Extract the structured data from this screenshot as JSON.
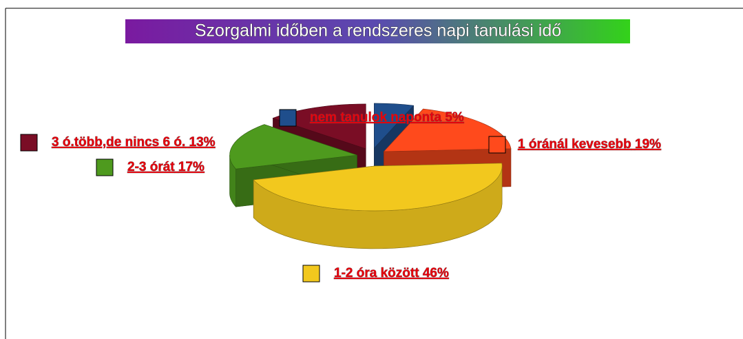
{
  "chart_data": {
    "type": "pie3d",
    "title": "Szorgalmi időben a rendszeres napi tanulási idő",
    "categories": [
      "nem tanulok naponta",
      "1 óránál kevesebb",
      "1-2 óra között",
      "2-3 órát",
      "3 ó.több,de nincs 6 ó."
    ],
    "values": [
      5,
      19,
      46,
      17,
      13
    ],
    "value_labels": [
      "5%",
      "19%",
      "46%",
      "17%",
      "13%"
    ],
    "colors": [
      "#1f4e8c",
      "#ff4a1c",
      "#f2c81e",
      "#4e9a1e",
      "#7a0d25"
    ]
  }
}
